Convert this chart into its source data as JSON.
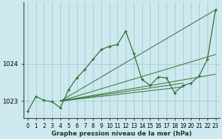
{
  "background_color": "#cde8ee",
  "plot_bg_color": "#cde8ee",
  "grid_color": "#a8cdd4",
  "line_color": "#2d6e2d",
  "xlabel": "Graphe pression niveau de la mer (hPa)",
  "xlim": [
    -0.5,
    23.5
  ],
  "ylim": [
    1022.55,
    1025.65
  ],
  "yticks": [
    1023,
    1024
  ],
  "xticks": [
    0,
    1,
    2,
    3,
    4,
    5,
    6,
    7,
    8,
    9,
    10,
    11,
    12,
    13,
    14,
    15,
    16,
    17,
    18,
    19,
    20,
    21,
    22,
    23
  ],
  "main_series": [
    1022.72,
    1023.12,
    1023.02,
    1022.98,
    1022.82,
    1023.3,
    1023.62,
    1023.85,
    1024.12,
    1024.38,
    1024.47,
    1024.52,
    1024.88,
    1024.27,
    1023.58,
    1023.42,
    1023.65,
    1023.62,
    1023.22,
    1023.42,
    1023.48,
    1023.68,
    1024.12,
    1025.45
  ],
  "fan_lines": [
    {
      "x": [
        4,
        23
      ],
      "y": [
        1023.0,
        1025.45
      ]
    },
    {
      "x": [
        4,
        19
      ],
      "y": [
        1023.0,
        1023.48
      ]
    },
    {
      "x": [
        4,
        19
      ],
      "y": [
        1023.0,
        1023.38
      ]
    },
    {
      "x": [
        4,
        23
      ],
      "y": [
        1023.0,
        1024.25
      ]
    },
    {
      "x": [
        4,
        23
      ],
      "y": [
        1023.0,
        1023.72
      ]
    }
  ]
}
